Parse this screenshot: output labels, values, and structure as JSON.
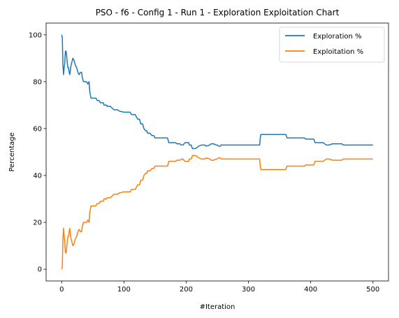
{
  "chart_data": {
    "type": "line",
    "title": "PSO - f6 - Config 1 - Run 1 - Exploration Exploitation Chart",
    "xlabel": "#Iteration",
    "ylabel": "Percentage",
    "xlim": [
      -25,
      525
    ],
    "ylim": [
      -5,
      105
    ],
    "xticks": [
      0,
      100,
      200,
      300,
      400,
      500
    ],
    "yticks": [
      0,
      20,
      40,
      60,
      80,
      100
    ],
    "grid": false,
    "legend_position": "top-right",
    "series": [
      {
        "name": "Exploration %",
        "color": "#1f77b4",
        "points": [
          [
            0,
            100
          ],
          [
            1,
            99
          ],
          [
            2,
            87
          ],
          [
            3,
            83
          ],
          [
            4,
            86
          ],
          [
            5,
            88
          ],
          [
            6,
            93
          ],
          [
            7,
            93
          ],
          [
            8,
            91
          ],
          [
            9,
            88
          ],
          [
            10,
            86
          ],
          [
            11,
            86
          ],
          [
            12,
            84
          ],
          [
            13,
            83
          ],
          [
            14,
            85
          ],
          [
            15,
            87
          ],
          [
            16,
            88
          ],
          [
            17,
            89
          ],
          [
            18,
            90
          ],
          [
            20,
            89
          ],
          [
            22,
            87
          ],
          [
            24,
            86
          ],
          [
            26,
            84
          ],
          [
            28,
            83
          ],
          [
            30,
            84
          ],
          [
            32,
            84
          ],
          [
            33,
            82
          ],
          [
            35,
            80
          ],
          [
            38,
            80
          ],
          [
            40,
            80
          ],
          [
            42,
            79
          ],
          [
            44,
            80
          ],
          [
            45,
            76
          ],
          [
            47,
            73
          ],
          [
            55,
            73
          ],
          [
            57,
            72
          ],
          [
            60,
            72
          ],
          [
            62,
            71
          ],
          [
            67,
            71
          ],
          [
            68,
            70
          ],
          [
            72,
            70
          ],
          [
            73,
            69.5
          ],
          [
            78,
            69.5
          ],
          [
            80,
            69
          ],
          [
            84,
            68
          ],
          [
            90,
            68
          ],
          [
            92,
            67.5
          ],
          [
            100,
            67
          ],
          [
            110,
            67
          ],
          [
            112,
            66
          ],
          [
            118,
            66
          ],
          [
            120,
            65
          ],
          [
            122,
            64
          ],
          [
            125,
            64
          ],
          [
            127,
            62
          ],
          [
            130,
            62
          ],
          [
            132,
            60
          ],
          [
            135,
            59
          ],
          [
            137,
            59
          ],
          [
            138,
            58
          ],
          [
            142,
            58
          ],
          [
            145,
            57
          ],
          [
            148,
            57
          ],
          [
            150,
            56
          ],
          [
            170,
            56
          ],
          [
            172,
            54
          ],
          [
            183,
            54
          ],
          [
            185,
            53.5
          ],
          [
            190,
            53.5
          ],
          [
            192,
            53
          ],
          [
            195,
            53
          ],
          [
            198,
            54
          ],
          [
            200,
            54
          ],
          [
            204,
            54
          ],
          [
            205,
            53
          ],
          [
            208,
            53
          ],
          [
            210,
            51.5
          ],
          [
            215,
            51.5
          ],
          [
            218,
            52
          ],
          [
            220,
            52.5
          ],
          [
            225,
            53
          ],
          [
            230,
            53
          ],
          [
            232,
            52.5
          ],
          [
            238,
            53
          ],
          [
            240,
            53.5
          ],
          [
            244,
            53.5
          ],
          [
            248,
            53
          ],
          [
            250,
            53
          ],
          [
            252,
            52.5
          ],
          [
            255,
            52.5
          ],
          [
            256,
            53
          ],
          [
            260,
            53
          ],
          [
            318,
            53
          ],
          [
            319,
            56
          ],
          [
            320,
            57.5
          ],
          [
            360,
            57.5
          ],
          [
            362,
            56
          ],
          [
            390,
            56
          ],
          [
            392,
            55.5
          ],
          [
            405,
            55.5
          ],
          [
            407,
            54
          ],
          [
            420,
            54
          ],
          [
            425,
            53
          ],
          [
            430,
            53
          ],
          [
            435,
            53.5
          ],
          [
            450,
            53.5
          ],
          [
            452,
            53
          ],
          [
            500,
            53
          ]
        ]
      },
      {
        "name": "Exploitation %",
        "color": "#ff7f0e",
        "points": [
          [
            0,
            0
          ],
          [
            1,
            1
          ],
          [
            2,
            13
          ],
          [
            3,
            17.5
          ],
          [
            4,
            14
          ],
          [
            5,
            12
          ],
          [
            6,
            7
          ],
          [
            7,
            7
          ],
          [
            8,
            9
          ],
          [
            9,
            12
          ],
          [
            10,
            14
          ],
          [
            11,
            14
          ],
          [
            12,
            16
          ],
          [
            13,
            17.5
          ],
          [
            14,
            15
          ],
          [
            15,
            13
          ],
          [
            16,
            12
          ],
          [
            17,
            11
          ],
          [
            18,
            10
          ],
          [
            20,
            11
          ],
          [
            22,
            13
          ],
          [
            24,
            14
          ],
          [
            26,
            16
          ],
          [
            28,
            17
          ],
          [
            30,
            16
          ],
          [
            32,
            16
          ],
          [
            33,
            18
          ],
          [
            35,
            20
          ],
          [
            38,
            20
          ],
          [
            40,
            20
          ],
          [
            42,
            21
          ],
          [
            44,
            20
          ],
          [
            45,
            24
          ],
          [
            47,
            27
          ],
          [
            55,
            27
          ],
          [
            57,
            28
          ],
          [
            60,
            28
          ],
          [
            62,
            29
          ],
          [
            67,
            29
          ],
          [
            68,
            30
          ],
          [
            72,
            30
          ],
          [
            73,
            30.5
          ],
          [
            78,
            30.5
          ],
          [
            80,
            31
          ],
          [
            84,
            32
          ],
          [
            90,
            32
          ],
          [
            92,
            32.5
          ],
          [
            100,
            33
          ],
          [
            110,
            33
          ],
          [
            112,
            34
          ],
          [
            118,
            34
          ],
          [
            120,
            35
          ],
          [
            122,
            36
          ],
          [
            125,
            36
          ],
          [
            127,
            38
          ],
          [
            130,
            38
          ],
          [
            132,
            40
          ],
          [
            135,
            41
          ],
          [
            137,
            41
          ],
          [
            138,
            42
          ],
          [
            142,
            42
          ],
          [
            145,
            43
          ],
          [
            148,
            43
          ],
          [
            150,
            44
          ],
          [
            170,
            44
          ],
          [
            172,
            46
          ],
          [
            183,
            46
          ],
          [
            185,
            46.5
          ],
          [
            190,
            46.5
          ],
          [
            192,
            47
          ],
          [
            195,
            47
          ],
          [
            198,
            46
          ],
          [
            200,
            46
          ],
          [
            204,
            46
          ],
          [
            205,
            47
          ],
          [
            208,
            47
          ],
          [
            210,
            48.5
          ],
          [
            215,
            48.5
          ],
          [
            218,
            48
          ],
          [
            220,
            47.5
          ],
          [
            225,
            47
          ],
          [
            230,
            47
          ],
          [
            232,
            47.5
          ],
          [
            238,
            47
          ],
          [
            240,
            46.5
          ],
          [
            244,
            46.5
          ],
          [
            248,
            47
          ],
          [
            250,
            47
          ],
          [
            252,
            47.5
          ],
          [
            255,
            47.5
          ],
          [
            256,
            47
          ],
          [
            260,
            47
          ],
          [
            318,
            47
          ],
          [
            319,
            44
          ],
          [
            320,
            42.5
          ],
          [
            360,
            42.5
          ],
          [
            362,
            44
          ],
          [
            390,
            44
          ],
          [
            392,
            44.5
          ],
          [
            405,
            44.5
          ],
          [
            407,
            46
          ],
          [
            420,
            46
          ],
          [
            425,
            47
          ],
          [
            430,
            47
          ],
          [
            435,
            46.5
          ],
          [
            450,
            46.5
          ],
          [
            452,
            47
          ],
          [
            500,
            47
          ]
        ]
      }
    ]
  }
}
